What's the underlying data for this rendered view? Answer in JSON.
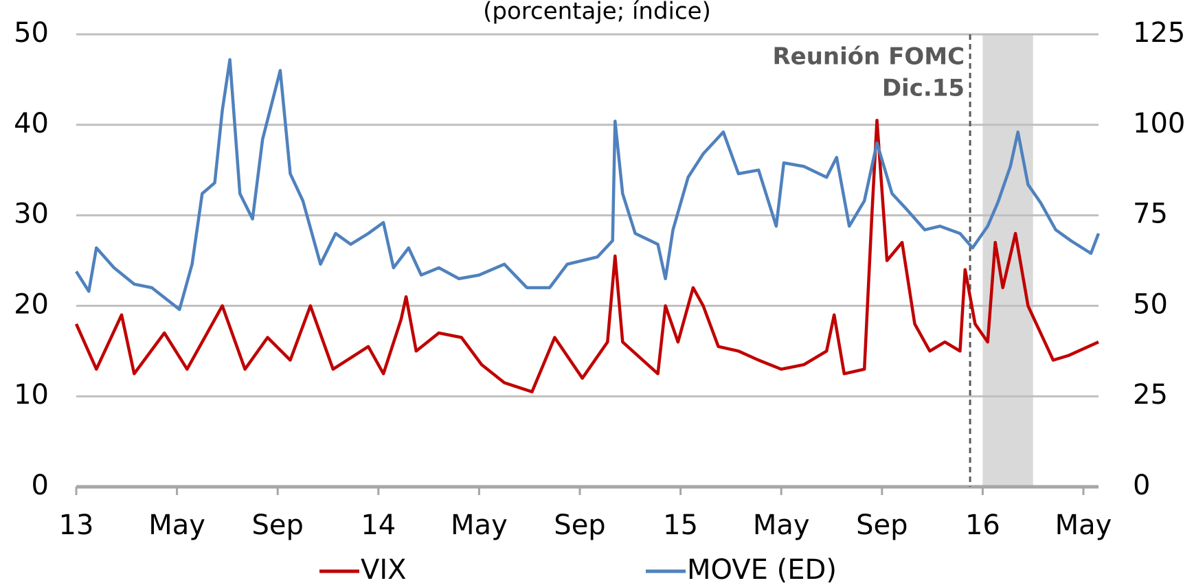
{
  "chart_data": {
    "type": "line",
    "subtitle": "(porcentaje; índice)",
    "xlim": [
      0,
      40.6
    ],
    "xticks": [
      {
        "value": 0,
        "label": "13"
      },
      {
        "value": 4,
        "label": "May"
      },
      {
        "value": 8,
        "label": "Sep"
      },
      {
        "value": 12,
        "label": "14"
      },
      {
        "value": 16,
        "label": "May"
      },
      {
        "value": 20,
        "label": "Sep"
      },
      {
        "value": 24,
        "label": "15"
      },
      {
        "value": 28,
        "label": "May"
      },
      {
        "value": 32,
        "label": "Sep"
      },
      {
        "value": 36,
        "label": "16"
      },
      {
        "value": 40,
        "label": "May"
      }
    ],
    "ylim": [
      0,
      50
    ],
    "yticks": [
      0,
      10,
      20,
      30,
      40,
      50
    ],
    "y2lim": [
      0,
      125
    ],
    "y2ticks": [
      0,
      25,
      50,
      75,
      100,
      125
    ],
    "grid": true,
    "annotation": {
      "lines": [
        "Reunión FOMC",
        "Dic.15"
      ],
      "x": 35.5
    },
    "shaded": [
      36,
      38
    ],
    "series": [
      {
        "name": "VIX",
        "color": "#c00000",
        "x": [
          0,
          0.8,
          1.8,
          2.3,
          3.5,
          4.4,
          5.8,
          6.7,
          7.6,
          8.5,
          9.3,
          10.2,
          11.6,
          12.2,
          12.9,
          13.1,
          13.5,
          14.4,
          15.3,
          16.1,
          17.0,
          18.1,
          19.0,
          20.1,
          21.1,
          21.4,
          21.7,
          22.5,
          23.1,
          23.4,
          23.9,
          24.5,
          24.9,
          25.5,
          26.3,
          27.1,
          28.0,
          28.9,
          29.8,
          30.1,
          30.5,
          31.3,
          31.6,
          31.8,
          32.2,
          32.8,
          33.3,
          33.9,
          34.5,
          35.1,
          35.3,
          35.7,
          36.2,
          36.5,
          36.8,
          37.3,
          37.8,
          38.3,
          38.8,
          39.4,
          40.6
        ],
        "values": [
          18,
          13,
          19,
          12.5,
          17,
          13,
          20,
          13,
          16.5,
          14,
          20,
          13,
          15.5,
          12.5,
          18.5,
          21,
          15,
          17,
          16.5,
          13.5,
          11.5,
          10.5,
          16.5,
          12,
          16,
          25.5,
          16,
          14,
          12.5,
          20,
          16,
          22,
          20,
          15.5,
          15,
          14,
          13,
          13.5,
          15,
          19,
          12.5,
          13,
          30,
          40.5,
          25,
          27,
          18,
          15,
          16,
          15,
          24,
          18,
          16,
          27,
          22,
          28,
          20,
          17,
          14,
          14.5,
          16
        ]
      },
      {
        "name": "MOVE (ED)",
        "color": "#4f81bd",
        "axis": "y2",
        "x": [
          0,
          0.5,
          0.8,
          1.5,
          2.3,
          3.0,
          4.1,
          4.6,
          5.0,
          5.5,
          5.8,
          6.1,
          6.5,
          7.0,
          7.4,
          8.1,
          8.5,
          9.0,
          9.7,
          10.3,
          10.9,
          11.6,
          12.2,
          12.6,
          13.2,
          13.7,
          14.4,
          15.2,
          16.0,
          17.0,
          17.9,
          18.8,
          19.5,
          20.7,
          21.3,
          21.4,
          21.7,
          22.2,
          23.1,
          23.4,
          23.7,
          24.3,
          24.9,
          25.7,
          26.3,
          27.1,
          27.8,
          28.1,
          28.9,
          29.8,
          30.2,
          30.7,
          31.3,
          31.8,
          32.4,
          33.0,
          33.7,
          34.3,
          35.1,
          35.6,
          36.2,
          36.6,
          37.1,
          37.4,
          37.8,
          38.3,
          38.9,
          39.5,
          40.3,
          40.6
        ],
        "values": [
          59.5,
          54,
          66,
          60.5,
          56,
          55,
          49,
          61.5,
          81,
          84,
          104,
          118,
          81,
          74,
          96,
          115,
          86.5,
          79,
          61.5,
          70,
          67,
          70,
          73,
          60.5,
          66,
          58.5,
          60.5,
          57.5,
          58.5,
          61.5,
          55,
          55,
          61.5,
          63.5,
          68,
          101,
          81,
          70,
          67,
          57.5,
          71,
          85.5,
          92,
          98,
          86.5,
          87.5,
          72,
          89.5,
          88.5,
          85.5,
          91,
          72,
          79,
          95,
          81,
          76.5,
          71,
          72,
          70,
          66,
          72,
          78.5,
          88.5,
          98,
          83.5,
          78.5,
          71,
          68,
          64.5,
          70
        ]
      }
    ]
  }
}
